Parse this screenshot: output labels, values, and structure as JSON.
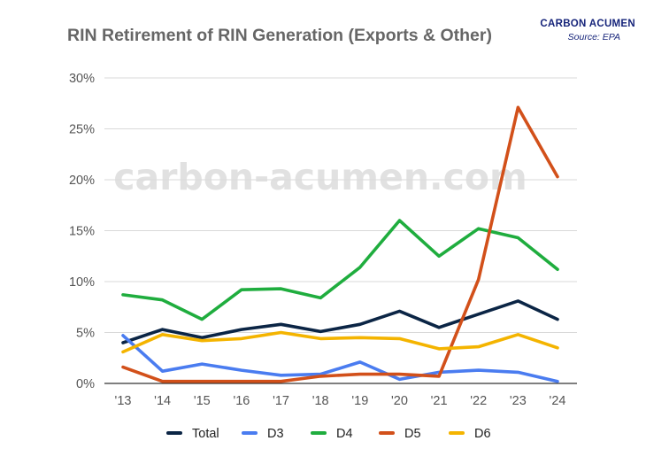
{
  "header": {
    "brand": "CARBON ACUMEN",
    "source": "Source: EPA"
  },
  "watermark": "carbon-acumen.com",
  "colors": {
    "Total": "#0b2545",
    "D3": "#4a7cf0",
    "D4": "#1fad3e",
    "D5": "#d2501a",
    "D6": "#f4b400",
    "grid": "#d9d9d9",
    "title": "#666666",
    "brand": "#16247a"
  },
  "chart_data": {
    "type": "line",
    "title": "RIN Retirement of RIN Generation (Exports & Other)",
    "xlabel": "",
    "ylabel": "",
    "categories": [
      "'13",
      "'14",
      "'15",
      "'16",
      "'17",
      "'18",
      "'19",
      "'20",
      "'21",
      "'22",
      "'23",
      "'24"
    ],
    "ylim": [
      0,
      30
    ],
    "yticks": [
      "0%",
      "5%",
      "10%",
      "15%",
      "20%",
      "25%",
      "30%"
    ],
    "grid": true,
    "legend_position": "bottom",
    "series": [
      {
        "name": "Total",
        "values": [
          4.0,
          5.3,
          4.5,
          5.3,
          5.8,
          5.1,
          5.8,
          7.1,
          5.5,
          6.8,
          8.1,
          6.3
        ]
      },
      {
        "name": "D3",
        "values": [
          4.7,
          1.2,
          1.9,
          1.3,
          0.8,
          0.9,
          2.1,
          0.4,
          1.1,
          1.3,
          1.1,
          0.2
        ]
      },
      {
        "name": "D4",
        "values": [
          8.7,
          8.2,
          6.3,
          9.2,
          9.3,
          8.4,
          11.4,
          16.0,
          12.5,
          15.2,
          14.3,
          11.2
        ]
      },
      {
        "name": "D5",
        "values": [
          1.6,
          0.2,
          0.2,
          0.2,
          0.2,
          0.7,
          0.9,
          0.9,
          0.7,
          10.2,
          27.1,
          20.3
        ]
      },
      {
        "name": "D6",
        "values": [
          3.1,
          4.8,
          4.2,
          4.4,
          5.0,
          4.4,
          4.5,
          4.4,
          3.4,
          3.6,
          4.8,
          3.5
        ]
      }
    ]
  }
}
